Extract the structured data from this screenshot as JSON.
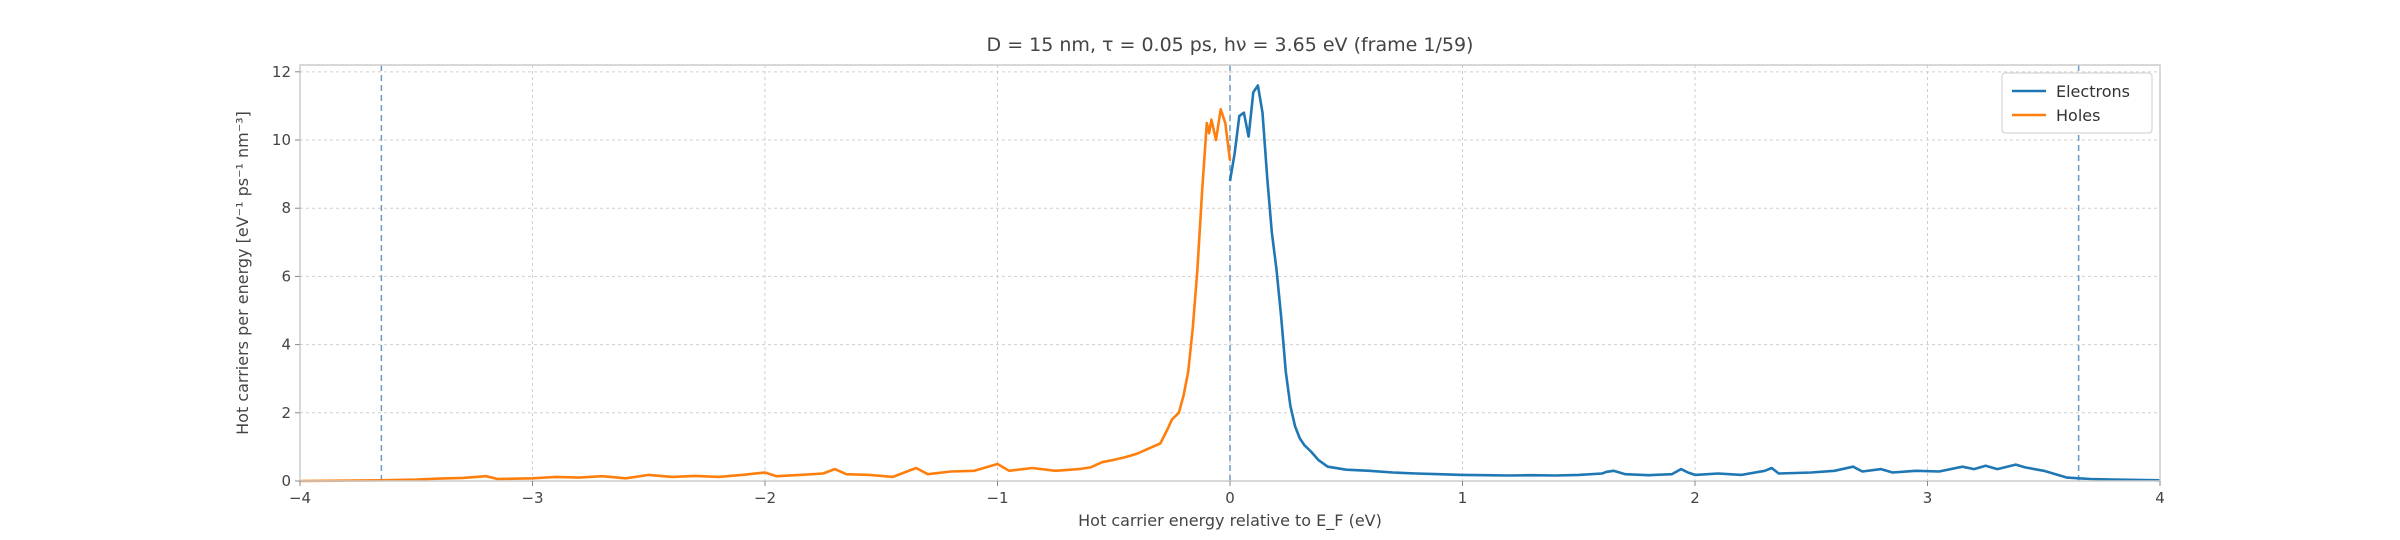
{
  "chart_data": {
    "type": "line",
    "title": "D = 15 nm, τ = 0.05 ps, hν = 3.65 eV   (frame 1/59)",
    "xlabel": "Hot carrier energy relative to E_F (eV)",
    "ylabel": "Hot carriers per energy  [eV⁻¹ ps⁻¹ nm⁻³]",
    "xlim": [
      -4,
      4
    ],
    "ylim": [
      0,
      12.2
    ],
    "x_ticks": [
      -4,
      -3,
      -2,
      -1,
      0,
      1,
      2,
      3,
      4
    ],
    "x_tick_labels": [
      "−4",
      "−3",
      "−2",
      "−1",
      "0",
      "1",
      "2",
      "3",
      "4"
    ],
    "y_ticks": [
      0,
      2,
      4,
      6,
      8,
      10,
      12
    ],
    "y_tick_labels": [
      "0",
      "2",
      "4",
      "6",
      "8",
      "10",
      "12"
    ],
    "grid": true,
    "legend_position": "top-right",
    "vertical_lines": [
      -3.65,
      0,
      3.65
    ],
    "series": [
      {
        "name": "Electrons",
        "color": "#1f77b4",
        "points": [
          [
            0,
            8.8
          ],
          [
            0.02,
            9.6
          ],
          [
            0.04,
            10.7
          ],
          [
            0.06,
            10.8
          ],
          [
            0.08,
            10.1
          ],
          [
            0.1,
            11.4
          ],
          [
            0.12,
            11.6
          ],
          [
            0.14,
            10.8
          ],
          [
            0.16,
            8.9
          ],
          [
            0.18,
            7.3
          ],
          [
            0.2,
            6.2
          ],
          [
            0.22,
            4.8
          ],
          [
            0.24,
            3.2
          ],
          [
            0.26,
            2.2
          ],
          [
            0.28,
            1.6
          ],
          [
            0.3,
            1.25
          ],
          [
            0.32,
            1.05
          ],
          [
            0.35,
            0.85
          ],
          [
            0.38,
            0.62
          ],
          [
            0.42,
            0.42
          ],
          [
            0.5,
            0.33
          ],
          [
            0.6,
            0.3
          ],
          [
            0.7,
            0.25
          ],
          [
            0.8,
            0.22
          ],
          [
            0.9,
            0.2
          ],
          [
            1.0,
            0.18
          ],
          [
            1.1,
            0.17
          ],
          [
            1.2,
            0.16
          ],
          [
            1.3,
            0.17
          ],
          [
            1.4,
            0.16
          ],
          [
            1.5,
            0.18
          ],
          [
            1.6,
            0.22
          ],
          [
            1.62,
            0.27
          ],
          [
            1.65,
            0.3
          ],
          [
            1.7,
            0.2
          ],
          [
            1.8,
            0.17
          ],
          [
            1.9,
            0.2
          ],
          [
            1.94,
            0.35
          ],
          [
            1.97,
            0.25
          ],
          [
            2.0,
            0.18
          ],
          [
            2.1,
            0.22
          ],
          [
            2.2,
            0.18
          ],
          [
            2.3,
            0.3
          ],
          [
            2.33,
            0.38
          ],
          [
            2.36,
            0.22
          ],
          [
            2.5,
            0.25
          ],
          [
            2.6,
            0.3
          ],
          [
            2.68,
            0.42
          ],
          [
            2.72,
            0.28
          ],
          [
            2.8,
            0.35
          ],
          [
            2.85,
            0.25
          ],
          [
            2.95,
            0.3
          ],
          [
            3.05,
            0.28
          ],
          [
            3.15,
            0.42
          ],
          [
            3.2,
            0.35
          ],
          [
            3.25,
            0.45
          ],
          [
            3.3,
            0.35
          ],
          [
            3.38,
            0.48
          ],
          [
            3.42,
            0.4
          ],
          [
            3.5,
            0.3
          ],
          [
            3.6,
            0.1
          ],
          [
            3.65,
            0.08
          ],
          [
            3.7,
            0.06
          ],
          [
            3.8,
            0.04
          ],
          [
            4.0,
            0.02
          ]
        ]
      },
      {
        "name": "Holes",
        "color": "#ff7f0e",
        "points": [
          [
            -4.0,
            0.0
          ],
          [
            -3.65,
            0.02
          ],
          [
            -3.5,
            0.04
          ],
          [
            -3.4,
            0.07
          ],
          [
            -3.3,
            0.09
          ],
          [
            -3.2,
            0.14
          ],
          [
            -3.15,
            0.06
          ],
          [
            -3.0,
            0.08
          ],
          [
            -2.9,
            0.12
          ],
          [
            -2.8,
            0.1
          ],
          [
            -2.7,
            0.14
          ],
          [
            -2.6,
            0.08
          ],
          [
            -2.5,
            0.18
          ],
          [
            -2.4,
            0.12
          ],
          [
            -2.3,
            0.15
          ],
          [
            -2.2,
            0.12
          ],
          [
            -2.1,
            0.18
          ],
          [
            -2.0,
            0.25
          ],
          [
            -1.95,
            0.14
          ],
          [
            -1.85,
            0.18
          ],
          [
            -1.75,
            0.22
          ],
          [
            -1.7,
            0.35
          ],
          [
            -1.65,
            0.2
          ],
          [
            -1.55,
            0.18
          ],
          [
            -1.45,
            0.12
          ],
          [
            -1.35,
            0.38
          ],
          [
            -1.3,
            0.2
          ],
          [
            -1.2,
            0.28
          ],
          [
            -1.1,
            0.3
          ],
          [
            -1.0,
            0.5
          ],
          [
            -0.95,
            0.3
          ],
          [
            -0.85,
            0.38
          ],
          [
            -0.75,
            0.3
          ],
          [
            -0.65,
            0.35
          ],
          [
            -0.6,
            0.4
          ],
          [
            -0.55,
            0.55
          ],
          [
            -0.5,
            0.62
          ],
          [
            -0.45,
            0.7
          ],
          [
            -0.4,
            0.8
          ],
          [
            -0.35,
            0.95
          ],
          [
            -0.3,
            1.1
          ],
          [
            -0.27,
            1.5
          ],
          [
            -0.25,
            1.8
          ],
          [
            -0.22,
            2.0
          ],
          [
            -0.2,
            2.5
          ],
          [
            -0.18,
            3.2
          ],
          [
            -0.16,
            4.5
          ],
          [
            -0.14,
            6.2
          ],
          [
            -0.12,
            8.5
          ],
          [
            -0.1,
            10.5
          ],
          [
            -0.09,
            10.2
          ],
          [
            -0.08,
            10.6
          ],
          [
            -0.06,
            10.0
          ],
          [
            -0.04,
            10.9
          ],
          [
            -0.02,
            10.5
          ],
          [
            0.0,
            9.4
          ]
        ]
      }
    ]
  }
}
